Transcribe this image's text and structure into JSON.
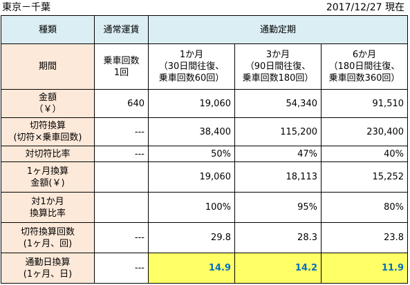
{
  "header": {
    "route": "東京－千葉",
    "date": "2017/12/27 現在"
  },
  "table": {
    "head": {
      "kind": "種類",
      "regular": "通常運賃",
      "commuter": "通勤定期"
    },
    "period": {
      "label": "期間",
      "regular": [
        "乗車回数",
        "1回"
      ],
      "m1": [
        "1か月",
        "（30日間往復、",
        "乗車回数60回）"
      ],
      "m3": [
        "3か月",
        "（90日間往復、",
        "乗車回数180回）"
      ],
      "m6": [
        "6か月",
        "（180日間往復、",
        "乗車回数360回）"
      ]
    },
    "rows": [
      {
        "label": [
          "金額",
          "（￥）"
        ],
        "regular": "640",
        "m1": "19,060",
        "m3": "54,340",
        "m6": "91,510"
      },
      {
        "label": [
          "切符換算",
          "(切符×乗車回数)"
        ],
        "regular": "---",
        "m1": "38,400",
        "m3": "115,200",
        "m6": "230,400"
      },
      {
        "label": [
          "対切符比率"
        ],
        "regular": "---",
        "m1": "50%",
        "m3": "47%",
        "m6": "40%"
      },
      {
        "label": [
          "1ヶ月換算",
          "金額(￥)"
        ],
        "regular": "",
        "m1": "19,060",
        "m3": "18,113",
        "m6": "15,252"
      },
      {
        "label": [
          "対1か月",
          "換算比率"
        ],
        "regular": "",
        "m1": "100%",
        "m3": "95%",
        "m6": "80%"
      },
      {
        "label": [
          "切符換算回数",
          "(1ヶ月、回)"
        ],
        "regular": "---",
        "m1": "29.8",
        "m3": "28.3",
        "m6": "23.8"
      },
      {
        "label": [
          "通勤日換算",
          "(1ヶ月、日)"
        ],
        "regular": "---",
        "m1": "14.9",
        "m3": "14.2",
        "m6": "11.9"
      }
    ]
  },
  "colors": {
    "header_bg": "#dbeef4",
    "label_bg": "#fde9d9",
    "highlight_bg": "#ffff66",
    "highlight_text": "#0070c0"
  }
}
